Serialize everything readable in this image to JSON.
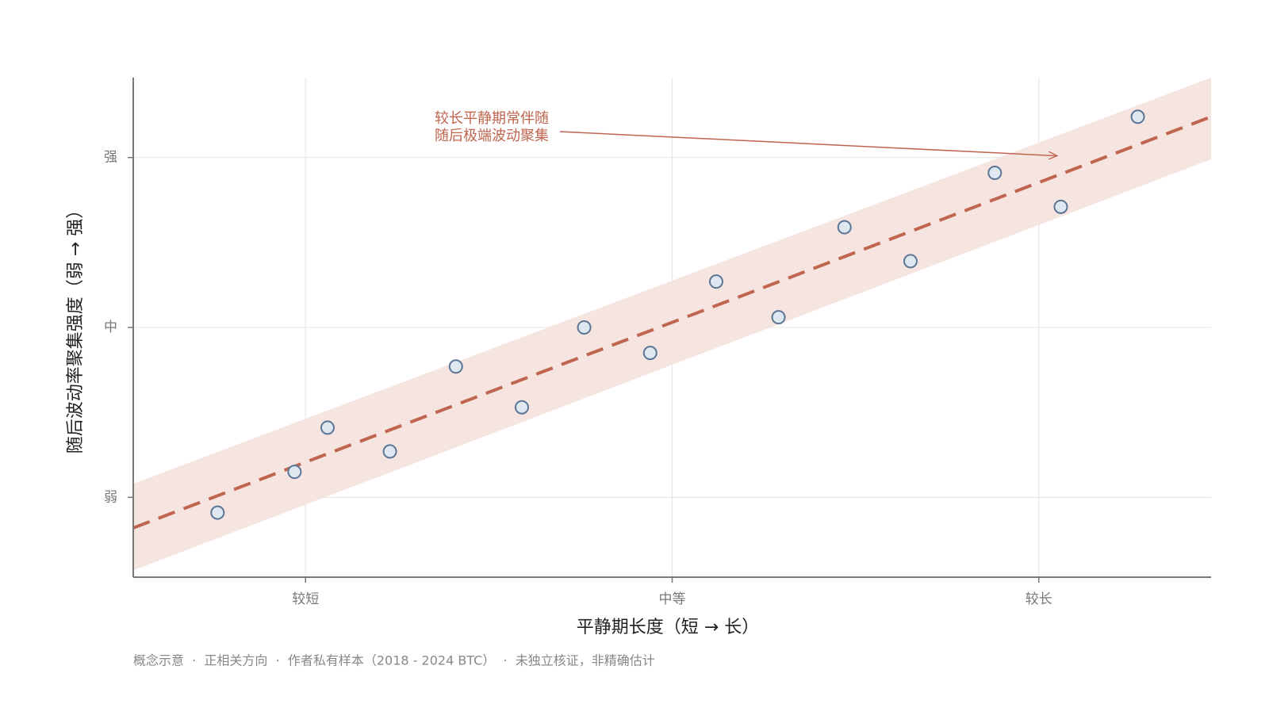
{
  "chart_data": {
    "type": "scatter",
    "xlabel": "平静期长度（短 → 长）",
    "ylabel": "随后波动率聚集强度（弱 → 强）",
    "xlim": [
      0.53,
      3.47
    ],
    "ylim": [
      0.53,
      3.47
    ],
    "xticks": [
      {
        "value": 1,
        "label": "较短"
      },
      {
        "value": 2,
        "label": "中等"
      },
      {
        "value": 3,
        "label": "较长"
      }
    ],
    "yticks": [
      {
        "value": 1,
        "label": "弱"
      },
      {
        "value": 2,
        "label": "中"
      },
      {
        "value": 3,
        "label": "强"
      }
    ],
    "grid": true,
    "points": {
      "x": [
        0.76,
        0.97,
        1.06,
        1.23,
        1.41,
        1.59,
        1.76,
        1.94,
        2.12,
        2.29,
        2.47,
        2.65,
        2.88,
        3.06,
        3.27
      ],
      "y": [
        0.91,
        1.15,
        1.41,
        1.27,
        1.77,
        1.53,
        2.0,
        1.85,
        2.27,
        2.06,
        2.59,
        2.39,
        2.91,
        2.71,
        3.24
      ],
      "color": "#dfe8f1",
      "edgecolor": "#5b7595"
    },
    "trend": {
      "x": [
        0.53,
        3.47
      ],
      "y": [
        0.82,
        3.24
      ],
      "color": "#c0654f"
    },
    "band": {
      "x": [
        0.53,
        3.47
      ],
      "lower": [
        0.57,
        2.99
      ],
      "upper": [
        1.08,
        3.47
      ],
      "color": "#f5e4df"
    },
    "annotation": {
      "text": [
        "较长平静期常伴随",
        "随后极端波动聚集"
      ],
      "xy": [
        3.05,
        3.01
      ],
      "color": "#c0654f"
    },
    "footnote": "概念示意  ·  正相关方向  ·  作者私有样本（2018 - 2024 BTC）  ·  未独立核证，非精确估计"
  }
}
